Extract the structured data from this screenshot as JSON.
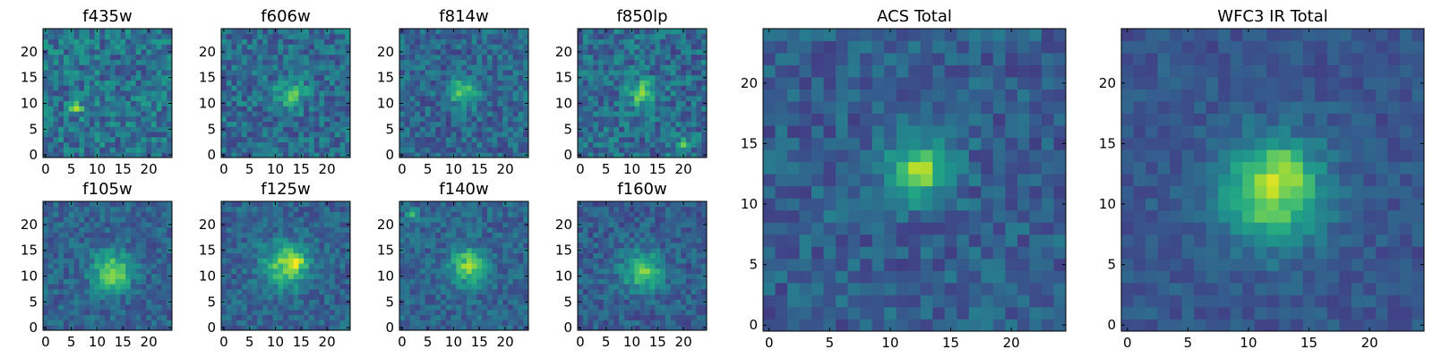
{
  "chart_data": [
    {
      "type": "heatmap",
      "title": "f435w",
      "xlim": [
        0,
        24
      ],
      "ylim": [
        0,
        24
      ],
      "colormap": "viridis",
      "xticks": [
        0,
        5,
        10,
        15,
        20
      ],
      "yticks": [
        0,
        5,
        10,
        15,
        20
      ],
      "peaks": [
        {
          "x": 6,
          "y": 9,
          "amp": 0.35,
          "sigma": 0.9
        }
      ],
      "base": 0.38,
      "noise": 0.18,
      "seed": 11
    },
    {
      "type": "heatmap",
      "title": "f606w",
      "xlim": [
        0,
        24
      ],
      "ylim": [
        0,
        24
      ],
      "colormap": "viridis",
      "xticks": [
        0,
        5,
        10,
        15,
        20
      ],
      "yticks": [
        0,
        5,
        10,
        15,
        20
      ],
      "peaks": [
        {
          "x": 13,
          "y": 12,
          "amp": 0.32,
          "sigma": 2.0
        }
      ],
      "base": 0.35,
      "noise": 0.16,
      "seed": 22
    },
    {
      "type": "heatmap",
      "title": "f814w",
      "xlim": [
        0,
        24
      ],
      "ylim": [
        0,
        24
      ],
      "colormap": "viridis",
      "xticks": [
        0,
        5,
        10,
        15,
        20
      ],
      "yticks": [
        0,
        5,
        10,
        15,
        20
      ],
      "peaks": [
        {
          "x": 12,
          "y": 12,
          "amp": 0.42,
          "sigma": 1.8
        }
      ],
      "base": 0.33,
      "noise": 0.15,
      "seed": 33
    },
    {
      "type": "heatmap",
      "title": "f850lp",
      "xlim": [
        0,
        24
      ],
      "ylim": [
        0,
        24
      ],
      "colormap": "viridis",
      "xticks": [
        0,
        5,
        10,
        15,
        20
      ],
      "yticks": [
        0,
        5,
        10,
        15,
        20
      ],
      "peaks": [
        {
          "x": 12,
          "y": 12,
          "amp": 0.38,
          "sigma": 1.9
        },
        {
          "x": 20,
          "y": 2,
          "amp": 0.45,
          "sigma": 0.8
        }
      ],
      "base": 0.35,
      "noise": 0.17,
      "seed": 44
    },
    {
      "type": "heatmap",
      "title": "f105w",
      "xlim": [
        0,
        24
      ],
      "ylim": [
        0,
        24
      ],
      "colormap": "viridis",
      "xticks": [
        0,
        5,
        10,
        15,
        20
      ],
      "yticks": [
        0,
        5,
        10,
        15,
        20
      ],
      "peaks": [
        {
          "x": 13,
          "y": 11,
          "amp": 0.5,
          "sigma": 2.6
        }
      ],
      "base": 0.32,
      "noise": 0.12,
      "seed": 55
    },
    {
      "type": "heatmap",
      "title": "f125w",
      "xlim": [
        0,
        24
      ],
      "ylim": [
        0,
        24
      ],
      "colormap": "viridis",
      "xticks": [
        0,
        5,
        10,
        15,
        20
      ],
      "yticks": [
        0,
        5,
        10,
        15,
        20
      ],
      "peaks": [
        {
          "x": 12,
          "y": 12,
          "amp": 0.45,
          "sigma": 3.0
        },
        {
          "x": 14,
          "y": 13,
          "amp": 0.3,
          "sigma": 1.2
        }
      ],
      "base": 0.32,
      "noise": 0.12,
      "seed": 66
    },
    {
      "type": "heatmap",
      "title": "f140w",
      "xlim": [
        0,
        24
      ],
      "ylim": [
        0,
        24
      ],
      "colormap": "viridis",
      "xticks": [
        0,
        5,
        10,
        15,
        20
      ],
      "yticks": [
        0,
        5,
        10,
        15,
        20
      ],
      "peaks": [
        {
          "x": 13,
          "y": 12,
          "amp": 0.48,
          "sigma": 2.4
        },
        {
          "x": 2,
          "y": 22,
          "amp": 0.4,
          "sigma": 0.8
        }
      ],
      "base": 0.32,
      "noise": 0.12,
      "seed": 77
    },
    {
      "type": "heatmap",
      "title": "f160w",
      "xlim": [
        0,
        24
      ],
      "ylim": [
        0,
        24
      ],
      "colormap": "viridis",
      "xticks": [
        0,
        5,
        10,
        15,
        20
      ],
      "yticks": [
        0,
        5,
        10,
        15,
        20
      ],
      "peaks": [
        {
          "x": 12,
          "y": 11,
          "amp": 0.45,
          "sigma": 2.6
        }
      ],
      "base": 0.3,
      "noise": 0.12,
      "seed": 88
    },
    {
      "type": "heatmap",
      "title": "ACS Total",
      "xlim": [
        0,
        24
      ],
      "ylim": [
        0,
        24
      ],
      "colormap": "viridis",
      "xticks": [
        0,
        5,
        10,
        15,
        20
      ],
      "yticks": [
        0,
        5,
        10,
        15,
        20
      ],
      "peaks": [
        {
          "x": 13,
          "y": 13,
          "amp": 0.45,
          "sigma": 1.6
        },
        {
          "x": 11,
          "y": 12,
          "amp": 0.25,
          "sigma": 1.4
        },
        {
          "x": 6,
          "y": 10,
          "amp": 0.15,
          "sigma": 1.0
        }
      ],
      "base": 0.3,
      "noise": 0.12,
      "seed": 99
    },
    {
      "type": "heatmap",
      "title": "WFC3 IR Total",
      "xlim": [
        0,
        24
      ],
      "ylim": [
        0,
        24
      ],
      "colormap": "viridis",
      "xticks": [
        0,
        5,
        10,
        15,
        20
      ],
      "yticks": [
        0,
        5,
        10,
        15,
        20
      ],
      "peaks": [
        {
          "x": 12,
          "y": 11,
          "amp": 0.55,
          "sigma": 3.0
        },
        {
          "x": 13,
          "y": 13,
          "amp": 0.2,
          "sigma": 1.0
        }
      ],
      "base": 0.27,
      "noise": 0.08,
      "seed": 110
    }
  ]
}
